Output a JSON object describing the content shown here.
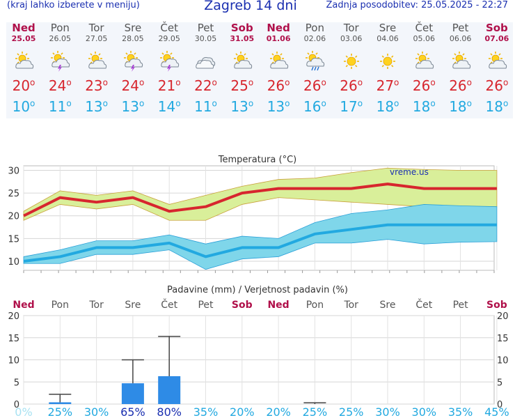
{
  "header": {
    "left_text": "(kraj lahko izberete v meniju)",
    "title": "Zagreb 14 dni",
    "updated": "Zadnja posodobitev: 25.05.2025 - 22:27"
  },
  "days": [
    {
      "name": "Ned",
      "date": "25.05",
      "weekend": true,
      "icon": "sun-cloud-icon",
      "tmax": "20",
      "tmin": "10"
    },
    {
      "name": "Pon",
      "date": "26.05",
      "weekend": false,
      "icon": "thunderstorm-sun-icon",
      "tmax": "24",
      "tmin": "11"
    },
    {
      "name": "Tor",
      "date": "27.05",
      "weekend": false,
      "icon": "sun-cloud-icon",
      "tmax": "23",
      "tmin": "13"
    },
    {
      "name": "Sre",
      "date": "28.05",
      "weekend": false,
      "icon": "thunderstorm-sun-icon",
      "tmax": "24",
      "tmin": "13"
    },
    {
      "name": "Čet",
      "date": "29.05",
      "weekend": false,
      "icon": "thunderstorm-sun-icon",
      "tmax": "21",
      "tmin": "14"
    },
    {
      "name": "Pet",
      "date": "30.05",
      "weekend": false,
      "icon": "cloudy-icon",
      "tmax": "22",
      "tmin": "11"
    },
    {
      "name": "Sob",
      "date": "31.05",
      "weekend": true,
      "icon": "sun-cloud-icon",
      "tmax": "25",
      "tmin": "13"
    },
    {
      "name": "Ned",
      "date": "01.06",
      "weekend": true,
      "icon": "sun-cloud-icon",
      "tmax": "26",
      "tmin": "13"
    },
    {
      "name": "Pon",
      "date": "02.06",
      "weekend": false,
      "icon": "rain-sun-icon",
      "tmax": "26",
      "tmin": "16"
    },
    {
      "name": "Tor",
      "date": "03.06",
      "weekend": false,
      "icon": "sunny-icon",
      "tmax": "26",
      "tmin": "17"
    },
    {
      "name": "Sre",
      "date": "04.06",
      "weekend": false,
      "icon": "sunny-icon",
      "tmax": "27",
      "tmin": "18"
    },
    {
      "name": "Čet",
      "date": "05.06",
      "weekend": false,
      "icon": "sun-cloud-icon",
      "tmax": "26",
      "tmin": "18"
    },
    {
      "name": "Pet",
      "date": "06.06",
      "weekend": false,
      "icon": "sun-cloud-icon",
      "tmax": "26",
      "tmin": "18"
    },
    {
      "name": "Sob",
      "date": "07.06",
      "weekend": true,
      "icon": "sun-cloud-icon",
      "tmax": "26",
      "tmin": "18"
    }
  ],
  "colors": {
    "tmax": "#d7262e",
    "tmin": "#22a9e0",
    "weekend": "#b0104a",
    "band_max": "#d9ef9a",
    "band_min": "#7fd6ea",
    "bar": "#2e8be6",
    "prob_high": "#1a2fb0",
    "prob_low": "#7fd6ea",
    "prob_mid": "#22a9e0"
  },
  "chart_data": [
    {
      "type": "line",
      "title": "Temperatura (°C)",
      "watermark": "vreme.us",
      "ylim": [
        8,
        31
      ],
      "yticks": [
        10,
        15,
        20,
        25,
        30
      ],
      "grid": true,
      "x": [
        "25.05",
        "26.05",
        "27.05",
        "28.05",
        "29.05",
        "30.05",
        "31.05",
        "01.06",
        "02.06",
        "03.06",
        "04.06",
        "05.06",
        "06.06",
        "07.06"
      ],
      "series": [
        {
          "role": "max",
          "values": [
            20,
            24,
            23,
            24,
            21,
            22,
            25,
            26,
            26,
            26,
            27,
            26,
            26,
            26
          ]
        },
        {
          "role": "max_upper",
          "values": [
            21,
            25.5,
            24.5,
            25.5,
            22.5,
            24.5,
            26.5,
            28,
            28.3,
            29.5,
            30.5,
            30.2,
            30,
            30
          ]
        },
        {
          "role": "max_lower",
          "values": [
            19,
            22.5,
            21.5,
            22.5,
            19,
            19,
            22.5,
            24,
            23.5,
            23,
            22.5,
            22,
            22,
            22
          ]
        },
        {
          "role": "min",
          "values": [
            10,
            11,
            13,
            13,
            14,
            11,
            13,
            13,
            16,
            17,
            18,
            18,
            18,
            18
          ]
        },
        {
          "role": "min_upper",
          "values": [
            11,
            12.5,
            14.5,
            14.5,
            15.8,
            13.8,
            15.5,
            15,
            18.5,
            20.5,
            21.3,
            22.5,
            22.2,
            22
          ]
        },
        {
          "role": "min_lower",
          "values": [
            9.5,
            9.5,
            11.5,
            11.5,
            12.5,
            8.2,
            10.5,
            11,
            14,
            14,
            14.8,
            13.8,
            14.2,
            14.3
          ]
        }
      ]
    },
    {
      "type": "bar",
      "title": "Padavine (mm) / Verjetnost padavin (%)",
      "ylim": [
        0,
        20
      ],
      "yticks": [
        0,
        5,
        10,
        15,
        20
      ],
      "grid": true,
      "categories": [
        "Ned",
        "Pon",
        "Tor",
        "Sre",
        "Čet",
        "Pet",
        "Sob",
        "Ned",
        "Pon",
        "Tor",
        "Sre",
        "Čet",
        "Pet",
        "Sob"
      ],
      "weekend": [
        true,
        false,
        false,
        false,
        false,
        false,
        true,
        true,
        false,
        false,
        false,
        false,
        false,
        true
      ],
      "values": [
        0,
        0.4,
        0,
        4.7,
        6.3,
        0,
        0,
        0,
        0,
        0,
        0,
        0,
        0,
        0
      ],
      "error_max": [
        0,
        2.2,
        0,
        10,
        15.3,
        0,
        0,
        0,
        0.3,
        0,
        0,
        0,
        0,
        0
      ],
      "probability": [
        "0%",
        "25%",
        "30%",
        "65%",
        "80%",
        "35%",
        "20%",
        "20%",
        "25%",
        "25%",
        "30%",
        "30%",
        "35%",
        "45%"
      ]
    }
  ]
}
